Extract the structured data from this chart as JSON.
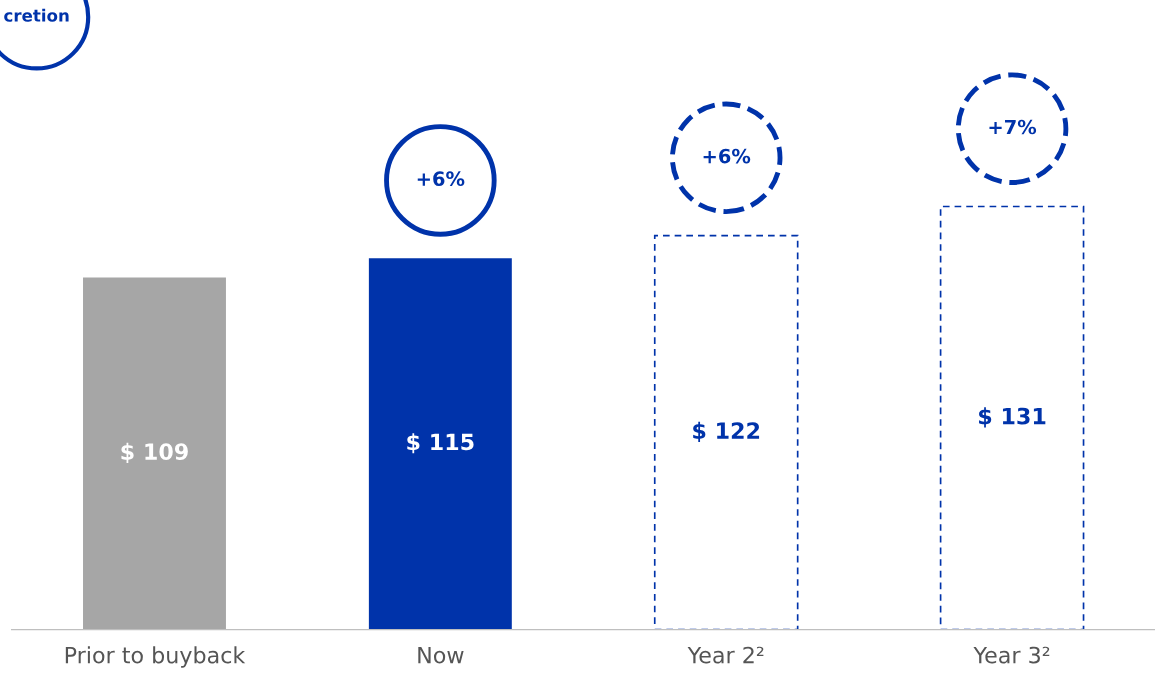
{
  "chart_data": {
    "type": "bar",
    "categories": [
      "Prior to buyback",
      "Now",
      "Year 2²",
      "Year 3²"
    ],
    "series": [
      {
        "colors": [
          "#a6a6a6",
          "#0033aa",
          null,
          null
        ],
        "values": [
          109,
          115,
          null,
          null
        ],
        "value_labels": [
          "$ 109",
          "$ 115",
          null,
          null
        ]
      },
      {
        "color": "#0033aa",
        "line_style": "dashed",
        "values": [
          null,
          null,
          122,
          131
        ],
        "value_labels": [
          null,
          null,
          "$ 122",
          "$ 131"
        ]
      }
    ],
    "annotations": [
      "cretion",
      "+6%",
      "+6%",
      "+7%"
    ],
    "legend": false,
    "grid": false
  }
}
